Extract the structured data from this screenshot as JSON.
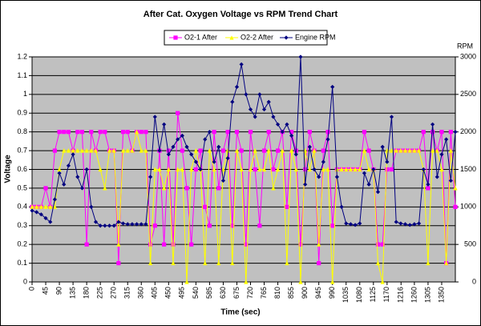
{
  "chart_data": {
    "type": "line",
    "title": "After Cat. Oxygen Voltage vs RPM Trend Chart",
    "x_label": "Time (sec)",
    "y_label": "Voltage",
    "y2_label": "RPM",
    "x": [
      0,
      15,
      30,
      45,
      60,
      75,
      90,
      105,
      120,
      135,
      150,
      165,
      180,
      195,
      210,
      225,
      240,
      255,
      270,
      285,
      300,
      315,
      330,
      345,
      360,
      375,
      390,
      405,
      420,
      435,
      450,
      465,
      480,
      495,
      510,
      525,
      540,
      555,
      570,
      585,
      600,
      615,
      630,
      645,
      660,
      675,
      690,
      705,
      720,
      735,
      750,
      765,
      780,
      795,
      810,
      825,
      840,
      855,
      870,
      885,
      900,
      915,
      930,
      945,
      960,
      975,
      990,
      1005,
      1020,
      1035,
      1050,
      1065,
      1080,
      1095,
      1110,
      1125,
      1140,
      1155,
      1170,
      1185,
      1200,
      1215,
      1230,
      1245,
      1260,
      1275,
      1290,
      1305,
      1320,
      1335,
      1350,
      1365,
      1380,
      1395
    ],
    "series": [
      {
        "name": "O2-1 After",
        "color": "#ff00ff",
        "marker": "square",
        "axis": "y",
        "values": [
          0.4,
          0.4,
          0.4,
          0.5,
          0.4,
          0.7,
          0.8,
          0.8,
          0.8,
          0.7,
          0.8,
          0.8,
          0.2,
          0.8,
          0.7,
          0.8,
          0.8,
          0.7,
          0.7,
          0.1,
          0.8,
          0.8,
          0.7,
          0.8,
          0.8,
          0.8,
          0.2,
          0.3,
          0.7,
          0.2,
          0.7,
          0.2,
          0.9,
          0.7,
          0.5,
          0.2,
          0.6,
          0.7,
          0.4,
          0.3,
          0.8,
          0.5,
          0.7,
          0.8,
          0.3,
          0.8,
          0.7,
          0.2,
          0.8,
          0.6,
          0.3,
          0.7,
          0.8,
          0.6,
          0.7,
          0.8,
          0.4,
          0.8,
          0.7,
          0.2,
          0.6,
          0.8,
          0.7,
          0.1,
          0.7,
          0.8,
          0.3,
          0.6,
          0.6,
          0.6,
          0.6,
          0.6,
          0.6,
          0.8,
          0.7,
          0.6,
          0.2,
          0.2,
          0.6,
          0.6,
          0.7,
          0.7,
          0.7,
          0.7,
          0.7,
          0.7,
          0.8,
          0.5,
          0.8,
          0.7,
          0.8,
          0.1,
          0.8,
          0.4
        ]
      },
      {
        "name": "O2-2 After",
        "color": "#ffff00",
        "marker": "triangle",
        "axis": "y",
        "values": [
          0.4,
          0.4,
          0.4,
          0.4,
          0.4,
          0.4,
          0.6,
          0.7,
          0.7,
          0.7,
          0.7,
          0.7,
          0.7,
          0.7,
          0.7,
          0.6,
          0.5,
          0.7,
          0.7,
          0.2,
          0.7,
          0.7,
          0.7,
          0.8,
          0.7,
          0.7,
          0.1,
          0.6,
          0.6,
          0.5,
          0.6,
          0.1,
          0.6,
          0.6,
          0,
          0.6,
          0.7,
          0.6,
          0.1,
          0.7,
          0.6,
          0.1,
          0.6,
          0.7,
          0.1,
          0.7,
          0.6,
          0,
          0.6,
          0.7,
          0.6,
          0.6,
          0.7,
          0.5,
          0.6,
          0.7,
          0.1,
          0.7,
          0.6,
          0,
          0.7,
          0.6,
          0.7,
          0.2,
          0.6,
          0.6,
          0,
          0.6,
          0.6,
          0.6,
          0.6,
          0.6,
          0.6,
          0.7,
          0.6,
          0.6,
          0.1,
          0,
          0.7,
          0.7,
          0.7,
          0.7,
          0.7,
          0.7,
          0.7,
          0.7,
          0.6,
          0.1,
          0.7,
          0.7,
          0.6,
          0.1,
          0.7,
          0.5
        ]
      },
      {
        "name": "Engine RPM",
        "color": "#000080",
        "marker": "diamond",
        "axis": "y2",
        "values": [
          950,
          930,
          900,
          850,
          800,
          1100,
          1450,
          1300,
          1550,
          1700,
          1400,
          1250,
          1500,
          1000,
          800,
          750,
          750,
          750,
          750,
          800,
          780,
          770,
          770,
          770,
          770,
          770,
          1400,
          2200,
          1750,
          2100,
          1700,
          1800,
          1900,
          1950,
          1800,
          1700,
          1600,
          1500,
          1900,
          2000,
          1600,
          1800,
          1350,
          1650,
          2400,
          2600,
          2900,
          2500,
          2300,
          2200,
          2500,
          2300,
          2400,
          2200,
          2100,
          2000,
          2100,
          1950,
          1700,
          3000,
          1300,
          1800,
          1500,
          1400,
          1600,
          1900,
          2600,
          1400,
          1000,
          780,
          770,
          760,
          780,
          1450,
          1300,
          1500,
          1200,
          1800,
          1600,
          2200,
          800,
          780,
          770,
          760,
          770,
          780,
          1500,
          1300,
          2100,
          1400,
          1700,
          1900,
          1350,
          2000
        ]
      }
    ],
    "xlim": [
      0,
      1395
    ],
    "xticks": [
      0,
      45,
      90,
      135,
      180,
      225,
      270,
      315,
      360,
      405,
      450,
      495,
      540,
      585,
      630,
      675,
      720,
      765,
      810,
      855,
      900,
      945,
      990,
      1035,
      1080,
      1125,
      1170,
      1216,
      1260,
      1305,
      1350
    ],
    "ylim": [
      0,
      1.2
    ],
    "yticks": [
      0,
      0.1,
      0.2,
      0.3,
      0.4,
      0.5,
      0.6,
      0.7,
      0.8,
      0.9,
      1,
      1.1,
      1.2
    ],
    "y2lim": [
      0,
      3000
    ],
    "y2ticks": [
      0,
      500,
      1000,
      1500,
      2000,
      2500,
      3000
    ],
    "grid": true,
    "plot_background": "#c0c0c0",
    "legend": "top"
  }
}
